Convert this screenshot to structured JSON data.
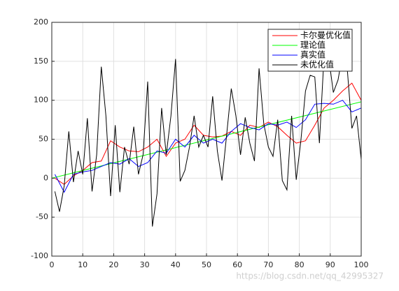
{
  "chart_data": {
    "type": "line",
    "xlim": [
      0,
      100
    ],
    "ylim": [
      -100,
      200
    ],
    "xticks": [
      0,
      10,
      20,
      30,
      40,
      50,
      60,
      70,
      80,
      90,
      100
    ],
    "yticks": [
      -100,
      -50,
      0,
      50,
      100,
      150,
      200
    ],
    "grid": true,
    "legend": "upper right",
    "watermark": "https://blog.csdn.net/qq_42995327",
    "series": [
      {
        "name": "卡尔曼优化值",
        "color": "#ff0000",
        "x": [
          1,
          4,
          7,
          10,
          13,
          16,
          19,
          22,
          25,
          28,
          31,
          34,
          37,
          40,
          43,
          46,
          49,
          52,
          55,
          58,
          61,
          64,
          67,
          70,
          73,
          76,
          79,
          82,
          85,
          88,
          91,
          94,
          97,
          100
        ],
        "values": [
          0,
          -8,
          3,
          10,
          20,
          22,
          48,
          40,
          35,
          34,
          40,
          50,
          28,
          45,
          50,
          68,
          55,
          53,
          54,
          60,
          55,
          68,
          65,
          72,
          66,
          55,
          45,
          48,
          68,
          90,
          100,
          112,
          122,
          100
        ]
      },
      {
        "name": "理论值",
        "color": "#00ff00",
        "x": [
          0,
          100
        ],
        "values": [
          0,
          98
        ]
      },
      {
        "name": "真实值",
        "color": "#0000ff",
        "x": [
          1,
          4,
          7,
          10,
          13,
          16,
          19,
          22,
          25,
          28,
          31,
          34,
          37,
          40,
          43,
          46,
          49,
          52,
          55,
          58,
          61,
          64,
          67,
          70,
          73,
          76,
          79,
          82,
          85,
          88,
          91,
          94,
          97,
          100
        ],
        "values": [
          5,
          -18,
          5,
          8,
          10,
          15,
          20,
          18,
          25,
          15,
          20,
          35,
          32,
          50,
          40,
          55,
          45,
          50,
          45,
          60,
          70,
          65,
          62,
          70,
          68,
          72,
          65,
          75,
          95,
          96,
          95,
          100,
          85,
          90
        ]
      },
      {
        "name": "未优化值",
        "color": "#000000",
        "x": [
          1,
          2.5,
          4,
          5.5,
          7,
          8.5,
          10,
          11.5,
          13,
          14.5,
          16,
          17.5,
          19,
          20.5,
          22,
          23.5,
          25,
          26.5,
          28,
          29.5,
          31,
          32.5,
          34,
          35.5,
          37,
          38.5,
          40,
          41.5,
          43,
          44.5,
          46,
          47.5,
          49,
          50.5,
          52,
          53.5,
          55,
          56.5,
          58,
          59.5,
          61,
          62.5,
          64,
          65.5,
          67,
          68.5,
          70,
          71.5,
          73,
          74.5,
          76,
          77.5,
          79,
          80.5,
          82,
          83.5,
          85,
          86.5,
          88,
          89.5,
          91,
          92.5,
          94,
          95.5,
          97,
          98.5,
          100
        ],
        "values": [
          -17,
          -43,
          -10,
          60,
          -5,
          35,
          5,
          77,
          -17,
          30,
          143,
          80,
          -23,
          68,
          -18,
          40,
          18,
          66,
          5,
          30,
          124,
          -62,
          -20,
          90,
          30,
          80,
          153,
          -4,
          10,
          40,
          80,
          40,
          55,
          40,
          105,
          35,
          -3,
          55,
          115,
          80,
          30,
          78,
          45,
          22,
          141,
          70,
          40,
          28,
          75,
          -3,
          -15,
          80,
          -2,
          48,
          112,
          132,
          130,
          45,
          158,
          155,
          110,
          126,
          160,
          140,
          64,
          80,
          24
        ]
      }
    ]
  }
}
